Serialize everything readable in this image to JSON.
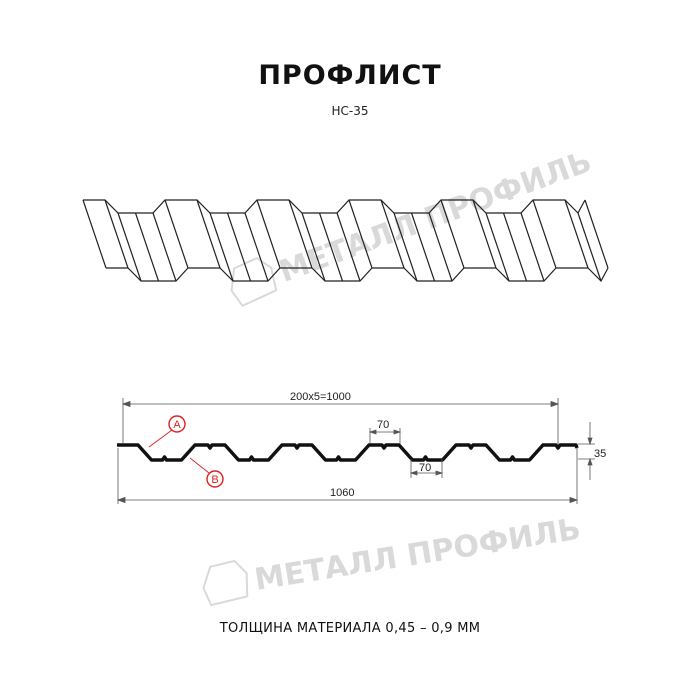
{
  "title": "ПРОФЛИСТ",
  "subtitle": "НС-35",
  "footer": "ТОЛЩИНА МАТЕРИАЛА 0,45 – 0,9 ММ",
  "watermark": "МЕТАЛЛ ПРОФИЛЬ",
  "dimensions": {
    "pitch_total": "200x5=1000",
    "top_width": "70",
    "bottom_width": "70",
    "height": "35",
    "overall_width": "1060"
  },
  "markers": {
    "a": "A",
    "b": "B"
  },
  "colors": {
    "marker": "#e02020",
    "line": "#111111",
    "watermark": "#d9d9d9"
  }
}
